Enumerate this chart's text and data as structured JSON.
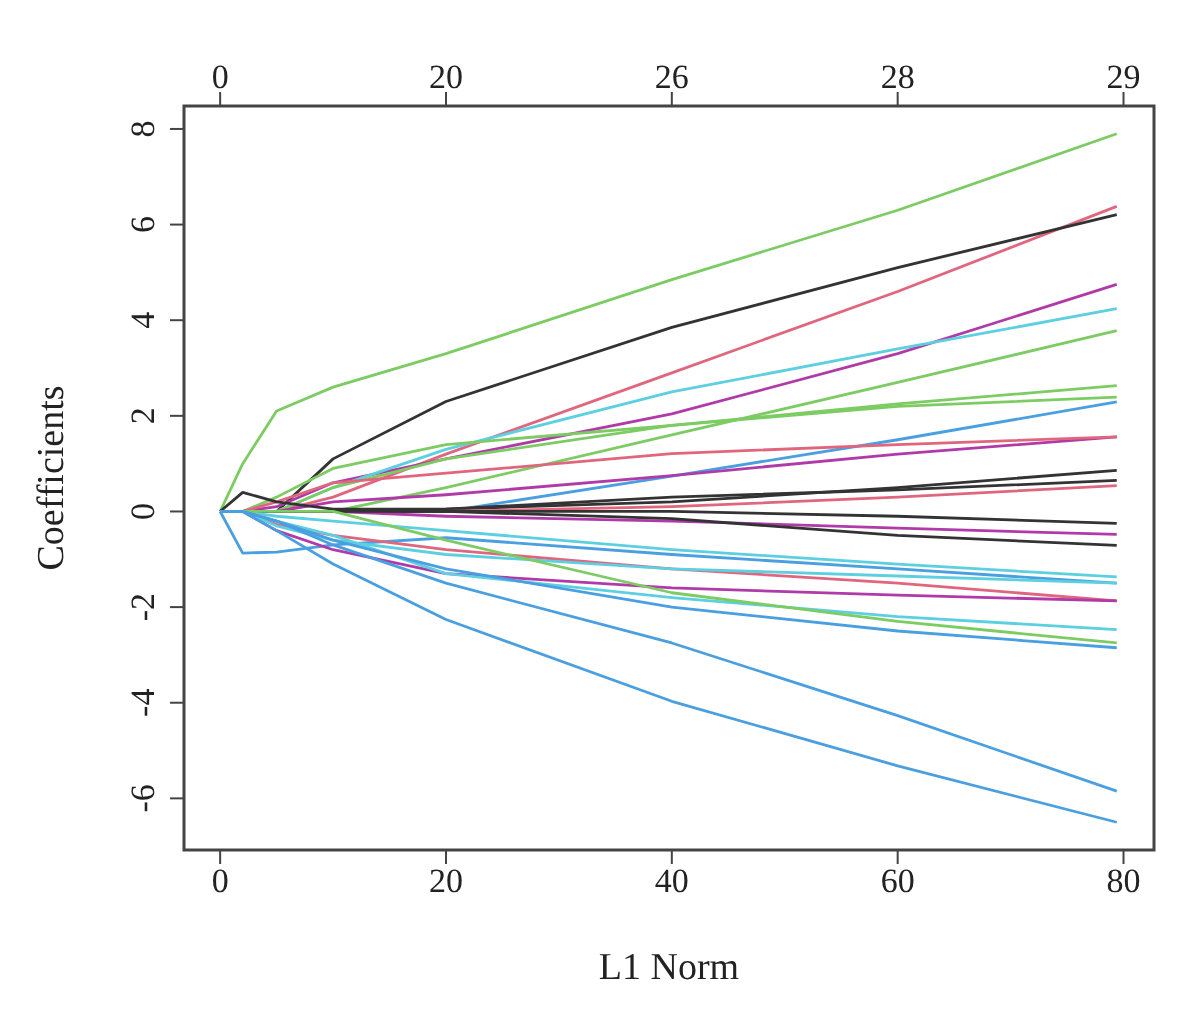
{
  "chart_data": {
    "type": "line",
    "xlabel": "L1 Norm",
    "ylabel": "Coefficients",
    "x": [
      0,
      2,
      5,
      10,
      20,
      40,
      60,
      79.4
    ],
    "xlim": [
      -3.2,
      82.7
    ],
    "xticks": [
      0,
      20,
      40,
      60,
      80
    ],
    "annotations": [
      "0",
      "20",
      "26",
      "28",
      "29"
    ],
    "ylim": [
      -7.08,
      8.48
    ],
    "yticks": [
      -6,
      -4,
      -2,
      0,
      2,
      4,
      6,
      8
    ],
    "grid": false,
    "legend": false,
    "marker": "none",
    "line_style": "solid",
    "series": [
      {
        "color": "#7ccc63",
        "values": [
          0,
          1.0,
          2.1,
          2.6,
          3.3,
          4.85,
          6.3,
          7.9
        ]
      },
      {
        "color": "#e0667e",
        "values": [
          0,
          0,
          0,
          0.3,
          1.2,
          2.9,
          4.6,
          6.38
        ]
      },
      {
        "color": "#333333",
        "values": [
          0,
          0,
          0,
          1.1,
          2.3,
          3.85,
          5.1,
          6.21
        ]
      },
      {
        "color": "#b03aa8",
        "values": [
          0,
          0,
          0.1,
          0.6,
          1.1,
          2.04,
          3.3,
          4.75
        ]
      },
      {
        "color": "#5ccfe0",
        "values": [
          0,
          0,
          0,
          0.5,
          1.3,
          2.5,
          3.4,
          4.24
        ]
      },
      {
        "color": "#7ccc63",
        "values": [
          0,
          0,
          0,
          0,
          0.5,
          1.6,
          2.7,
          3.78
        ]
      },
      {
        "color": "#7ccc63",
        "values": [
          0,
          0,
          0.3,
          0.9,
          1.4,
          1.8,
          2.25,
          2.63
        ]
      },
      {
        "color": "#7ccc63",
        "values": [
          0,
          0,
          0,
          0.5,
          1.1,
          1.8,
          2.2,
          2.39
        ]
      },
      {
        "color": "#4a9fe0",
        "values": [
          0,
          0,
          0,
          0,
          0,
          0.74,
          1.5,
          2.29
        ]
      },
      {
        "color": "#b03aa8",
        "values": [
          0,
          0,
          0,
          0.2,
          0.35,
          0.75,
          1.2,
          1.56
        ]
      },
      {
        "color": "#e0667e",
        "values": [
          0,
          0,
          0.2,
          0.6,
          0.8,
          1.21,
          1.4,
          1.56
        ]
      },
      {
        "color": "#333333",
        "values": [
          0,
          0.4,
          0.2,
          0.05,
          0.05,
          0.2,
          0.5,
          0.86
        ]
      },
      {
        "color": "#333333",
        "values": [
          0,
          0,
          0,
          0,
          0.05,
          0.3,
          0.45,
          0.65
        ]
      },
      {
        "color": "#e0667e",
        "values": [
          0,
          0,
          0,
          0,
          0,
          0.1,
          0.3,
          0.54
        ]
      },
      {
        "color": "#333333",
        "values": [
          0,
          0,
          0,
          0,
          0,
          0,
          -0.1,
          -0.25
        ]
      },
      {
        "color": "#b03aa8",
        "values": [
          0,
          0,
          0,
          0,
          -0.1,
          -0.2,
          -0.35,
          -0.48
        ]
      },
      {
        "color": "#333333",
        "values": [
          0,
          0,
          0,
          0,
          0,
          -0.15,
          -0.5,
          -0.71
        ]
      },
      {
        "color": "#5ccfe0",
        "values": [
          0,
          0,
          -0.1,
          -0.2,
          -0.4,
          -0.8,
          -1.1,
          -1.37
        ]
      },
      {
        "color": "#4a9fe0",
        "values": [
          0,
          -0.87,
          -0.85,
          -0.7,
          -0.55,
          -0.9,
          -1.2,
          -1.5
        ]
      },
      {
        "color": "#e0667e",
        "values": [
          0,
          0,
          -0.27,
          -0.5,
          -0.8,
          -1.2,
          -1.5,
          -1.87
        ]
      },
      {
        "color": "#b03aa8",
        "values": [
          0,
          0,
          -0.4,
          -0.8,
          -1.3,
          -1.6,
          -1.75,
          -1.87
        ]
      },
      {
        "color": "#5ccfe0",
        "values": [
          0,
          0,
          -0.3,
          -0.6,
          -0.9,
          -1.2,
          -1.35,
          -1.5
        ]
      },
      {
        "color": "#5ccfe0",
        "values": [
          0,
          0,
          -0.2,
          -0.5,
          -1.3,
          -1.8,
          -2.2,
          -2.47
        ]
      },
      {
        "color": "#7ccc63",
        "values": [
          0,
          0,
          0,
          0,
          -0.6,
          -1.7,
          -2.3,
          -2.75
        ]
      },
      {
        "color": "#4a9fe0",
        "values": [
          0,
          0,
          -0.2,
          -0.6,
          -1.2,
          -2.0,
          -2.5,
          -2.85
        ]
      },
      {
        "color": "#4a9fe0",
        "values": [
          0,
          0,
          -0.2,
          -0.7,
          -1.5,
          -2.75,
          -4.27,
          -5.85
        ]
      },
      {
        "color": "#4a9fe0",
        "values": [
          0,
          0,
          -0.4,
          -1.1,
          -2.26,
          -3.97,
          -5.32,
          -6.5
        ]
      }
    ]
  }
}
